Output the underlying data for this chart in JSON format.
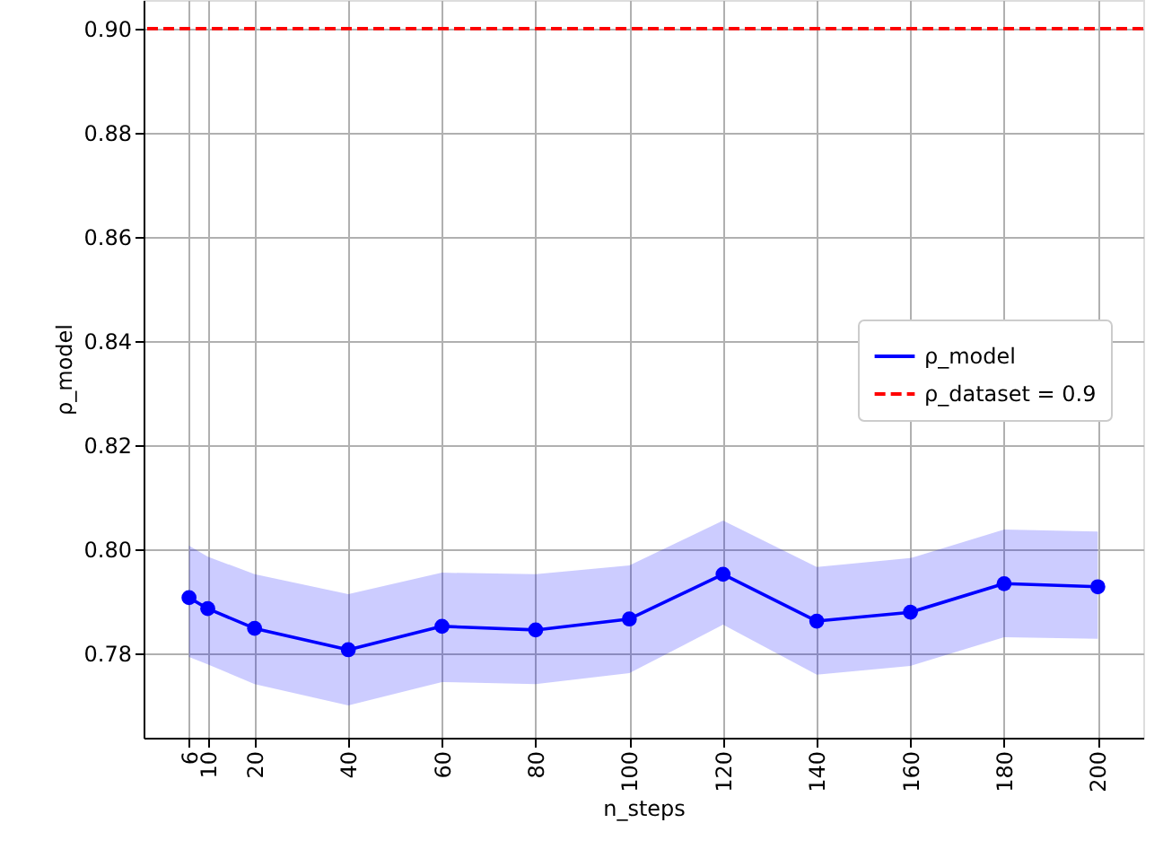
{
  "chart_data": {
    "type": "line",
    "xlabel": "n_steps",
    "ylabel": "ρ_model",
    "x": [
      6,
      10,
      20,
      40,
      60,
      80,
      100,
      120,
      140,
      160,
      180,
      200
    ],
    "series": [
      {
        "name": "ρ_model",
        "color": "#0000ff",
        "values": [
          0.7907,
          0.7886,
          0.7848,
          0.7807,
          0.7852,
          0.7845,
          0.7866,
          0.7952,
          0.7862,
          0.7879,
          0.7934,
          0.7928
        ],
        "lower": [
          0.7793,
          0.7779,
          0.7741,
          0.77,
          0.7745,
          0.7741,
          0.7762,
          0.7855,
          0.7759,
          0.7776,
          0.7831,
          0.7828
        ],
        "upper": [
          0.8007,
          0.7986,
          0.7952,
          0.7914,
          0.7955,
          0.7952,
          0.7969,
          0.8055,
          0.7966,
          0.7983,
          0.8038,
          0.8034
        ]
      }
    ],
    "ref_lines": [
      {
        "axis": "y",
        "value": 0.9,
        "label": "ρ_dataset = 0.9",
        "color": "#ff0000",
        "line_style": "dashed"
      }
    ],
    "xlim": [
      -3.7,
      209.7
    ],
    "xticks": [
      6,
      10,
      20,
      40,
      60,
      80,
      100,
      120,
      140,
      160,
      180,
      200
    ],
    "ylim": [
      0.7638,
      0.9055
    ],
    "yticks": [
      0.78,
      {
        "value": 0.8,
        "label": "0.80"
      },
      0.82,
      0.84,
      0.86,
      0.88,
      {
        "value": 0.9,
        "label": "0.90"
      }
    ],
    "grid": true,
    "legend": "right",
    "marker": "circle",
    "line_style": "solid"
  }
}
